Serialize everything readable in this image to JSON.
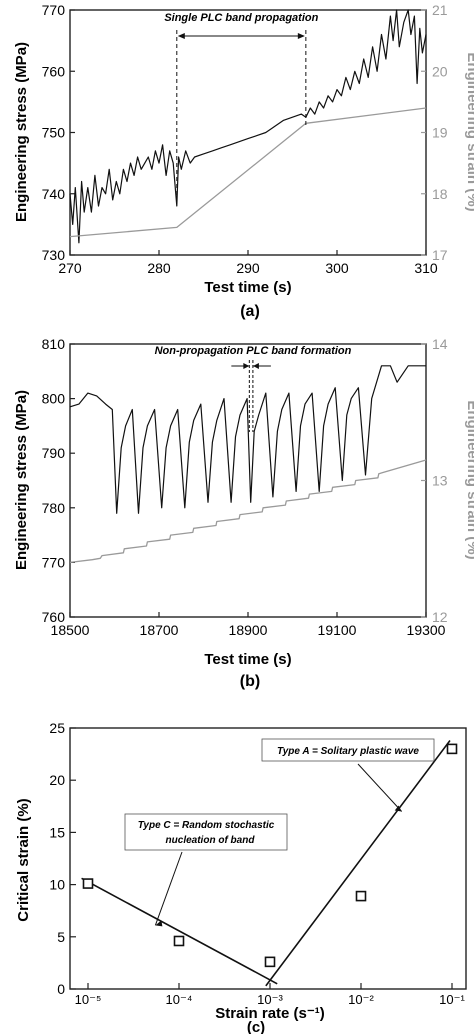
{
  "panel_labels": [
    "(a)",
    "(b)",
    "(c)"
  ],
  "chart_data": [
    {
      "type": "line",
      "panel_label": "(a)",
      "xlabel": "Test time (s)",
      "ylabel": "Engineering stress (MPa)",
      "y2label": "Engineering strain (%)",
      "xlim": [
        270,
        310
      ],
      "ylim": [
        730,
        770
      ],
      "y2lim": [
        17,
        21
      ],
      "xticks": [
        "270",
        "280",
        "290",
        "300",
        "310"
      ],
      "yticks": [
        "730",
        "740",
        "750",
        "760",
        "770"
      ],
      "y2ticks": [
        "17",
        "18",
        "19",
        "20",
        "21"
      ],
      "annotation": "Single PLC band propagation",
      "annotation_range": [
        282,
        296.5
      ],
      "series": [
        {
          "axis": "left",
          "color": "#111111",
          "x": [
            270,
            270.3,
            270.6,
            271,
            271.3,
            271.6,
            272,
            272.4,
            272.8,
            273.2,
            273.6,
            274,
            274.4,
            274.8,
            275.2,
            275.6,
            276,
            276.4,
            276.8,
            277.2,
            277.6,
            278,
            278.4,
            278.8,
            279.2,
            279.6,
            280,
            280.4,
            280.8,
            281.2,
            281.6,
            282,
            282.2,
            282.5,
            283,
            283.5,
            284,
            285,
            286,
            287,
            288,
            289,
            290,
            291,
            292,
            293,
            294,
            295,
            296,
            296.5,
            297,
            297.5,
            298,
            298.5,
            299,
            299.5,
            300,
            300.5,
            301,
            301.5,
            302,
            302.5,
            303,
            303.5,
            304,
            304.5,
            305,
            305.5,
            306,
            306.3,
            306.7,
            307,
            307.5,
            308,
            308.3,
            308.7,
            309,
            309.3,
            309.6,
            310
          ],
          "y": [
            740,
            735,
            741,
            732,
            742,
            737,
            741,
            737,
            743,
            738,
            741,
            740,
            744,
            739,
            742,
            740,
            744,
            742,
            745,
            743,
            746,
            744,
            745,
            746,
            744,
            747,
            745,
            748,
            743,
            747,
            745,
            738,
            746,
            744,
            747,
            745,
            746,
            746.5,
            747,
            747.5,
            748,
            748.5,
            749,
            749.5,
            750,
            751,
            752,
            752.5,
            753,
            752.5,
            754,
            753,
            755,
            754,
            756,
            755,
            757,
            756,
            759,
            757,
            760,
            758,
            762,
            759,
            764,
            760,
            766,
            762,
            769,
            765,
            770,
            764,
            768,
            770,
            766,
            769,
            758,
            767,
            763,
            766
          ]
        },
        {
          "axis": "right",
          "color": "#9a9a9a",
          "x": [
            270,
            282,
            296.5,
            310
          ],
          "y": [
            17.3,
            17.45,
            19.15,
            19.4
          ]
        }
      ]
    },
    {
      "type": "line",
      "panel_label": "(b)",
      "xlabel": "Test time (s)",
      "ylabel": "Engineering stress (MPa)",
      "y2label": "Engineering strain (%)",
      "xlim": [
        18500,
        19300
      ],
      "ylim": [
        760,
        810
      ],
      "y2lim": [
        12,
        14
      ],
      "xticks": [
        "18500",
        "18700",
        "18900",
        "19100",
        "19300"
      ],
      "yticks": [
        "760",
        "770",
        "780",
        "790",
        "800",
        "810"
      ],
      "y2ticks": [
        "12",
        "13",
        "14"
      ],
      "annotation": "Non-propagation PLC band formation",
      "annotation_range": [
        18903,
        18911
      ],
      "series": [
        {
          "axis": "left",
          "color": "#111111",
          "x": [
            18500,
            18520,
            18540,
            18560,
            18580,
            18595,
            18605,
            18615,
            18625,
            18640,
            18654,
            18664,
            18674,
            18690,
            18706,
            18716,
            18726,
            18742,
            18758,
            18768,
            18778,
            18794,
            18810,
            18820,
            18830,
            18846,
            18862,
            18872,
            18882,
            18898,
            18906,
            18914,
            18924,
            18940,
            18956,
            18966,
            18976,
            18992,
            19008,
            19018,
            19028,
            19044,
            19060,
            19070,
            19080,
            19096,
            19112,
            19122,
            19132,
            19148,
            19164,
            19178,
            19200,
            19220,
            19235,
            19260,
            19300
          ],
          "y": [
            798.5,
            799,
            801,
            800.5,
            799,
            798,
            779,
            791,
            795,
            798,
            779,
            791,
            795,
            798,
            780,
            791,
            795,
            798,
            780,
            792,
            796,
            799,
            781,
            792,
            796,
            800,
            781,
            793,
            797,
            800,
            781,
            794,
            797,
            801,
            782,
            794,
            798,
            801,
            783,
            795,
            799,
            801,
            783,
            795,
            799,
            802,
            785,
            797,
            800,
            802,
            786,
            800,
            806,
            806,
            803,
            806,
            806
          ]
        },
        {
          "axis": "right",
          "color": "#9a9a9a",
          "x": [
            18500,
            18550,
            18568,
            18572,
            18620,
            18622,
            18672,
            18674,
            18724,
            18726,
            18776,
            18778,
            18828,
            18830,
            18880,
            18882,
            18932,
            18934,
            18984,
            18986,
            19036,
            19038,
            19088,
            19090,
            19140,
            19142,
            19192,
            19194,
            19300
          ],
          "y": [
            12.4,
            12.42,
            12.43,
            12.45,
            12.47,
            12.5,
            12.52,
            12.55,
            12.57,
            12.6,
            12.62,
            12.65,
            12.67,
            12.7,
            12.72,
            12.75,
            12.77,
            12.8,
            12.82,
            12.85,
            12.87,
            12.9,
            12.92,
            12.95,
            12.97,
            13.0,
            13.02,
            13.05,
            13.15
          ]
        }
      ]
    },
    {
      "type": "scatter",
      "panel_label": "(c)",
      "xlabel": "Strain rate (s⁻¹)",
      "ylabel": "Critical strain (%)",
      "xscale": "log",
      "xlim": [
        1e-05,
        0.1
      ],
      "ylim": [
        0,
        25
      ],
      "xticks": [
        "10⁻⁵",
        "10⁻⁴",
        "10⁻³",
        "10⁻²",
        "10⁻¹"
      ],
      "yticks": [
        "0",
        "5",
        "10",
        "15",
        "20",
        "25"
      ],
      "points": [
        {
          "x": 1e-05,
          "y": 10.1
        },
        {
          "x": 0.0001,
          "y": 4.6
        },
        {
          "x": 0.001,
          "y": 2.6
        },
        {
          "x": 0.01,
          "y": 8.9
        },
        {
          "x": 0.1,
          "y": 23.0
        }
      ],
      "fit_lines": [
        {
          "x": [
            8.5e-06,
            0.0012
          ],
          "y": [
            10.6,
            0.5
          ]
        },
        {
          "x": [
            0.0009,
            0.095
          ],
          "y": [
            0.3,
            23.8
          ]
        }
      ],
      "annotations": [
        {
          "text": "Type A = Solitary plastic wave",
          "points_to": {
            "x": 0.028,
            "y": 17
          }
        },
        {
          "text": "Type C = Random stochastic nucleation of band",
          "points_to": {
            "x": 5.5e-05,
            "y": 6.1
          }
        }
      ]
    }
  ]
}
